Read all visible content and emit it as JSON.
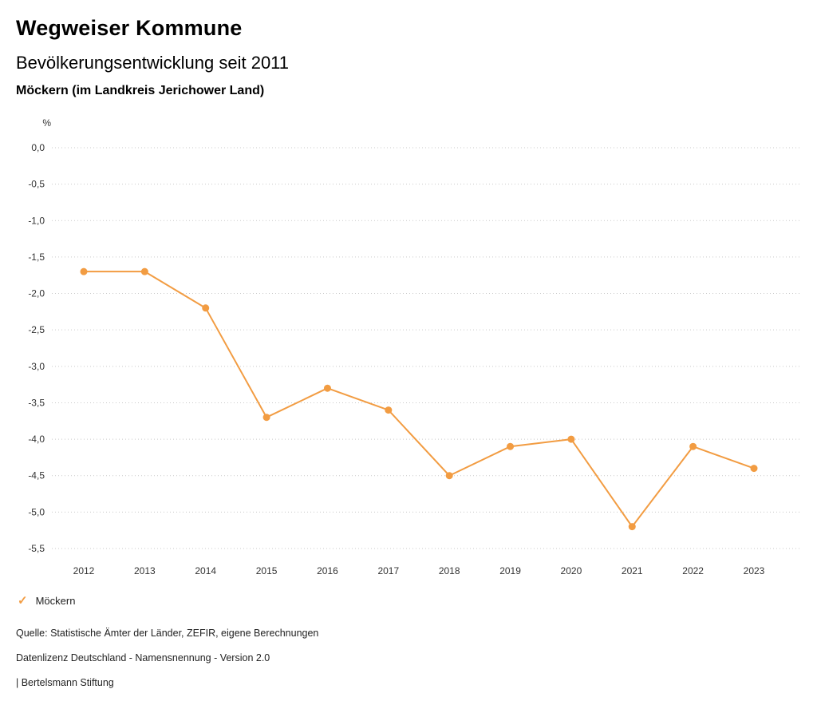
{
  "header": {
    "title": "Wegweiser Kommune",
    "subtitle": "Bevölkerungsentwicklung seit 2011",
    "location": "Möckern (im Landkreis Jerichower Land)"
  },
  "chart_data": {
    "type": "line",
    "title": "Bevölkerungsentwicklung seit 2011",
    "subtitle": "Möckern (im Landkreis Jerichower Land)",
    "xlabel": "",
    "ylabel": "%",
    "x": [
      2012,
      2013,
      2014,
      2015,
      2016,
      2017,
      2018,
      2019,
      2020,
      2021,
      2022,
      2023
    ],
    "series": [
      {
        "name": "Möckern",
        "color": "#f29c42",
        "values": [
          -1.7,
          -1.7,
          -2.2,
          -3.7,
          -3.3,
          -3.6,
          -4.5,
          -4.1,
          -4.0,
          -5.2,
          -4.1,
          -4.4
        ]
      }
    ],
    "ylim": [
      -5.5,
      0.0
    ],
    "yticks": [
      0.0,
      -0.5,
      -1.0,
      -1.5,
      -2.0,
      -2.5,
      -3.0,
      -3.5,
      -4.0,
      -4.5,
      -5.0,
      -5.5
    ],
    "ytick_labels": [
      "0,0",
      "-0,5",
      "-1,0",
      "-1,5",
      "-2,0",
      "-2,5",
      "-3,0",
      "-3,5",
      "-4,0",
      "-4,5",
      "-5,0",
      "-5,5"
    ],
    "grid": true,
    "gridline_color": "#c9c9c9",
    "legend_position": "bottom-left"
  },
  "legend": {
    "check_icon": "✓",
    "label": "Möckern"
  },
  "footer": {
    "source": "Quelle: Statistische Ämter der Länder, ZEFIR, eigene Berechnungen",
    "license": "Datenlizenz Deutschland - Namensnennung - Version 2.0",
    "attribution": "| Bertelsmann Stiftung"
  }
}
